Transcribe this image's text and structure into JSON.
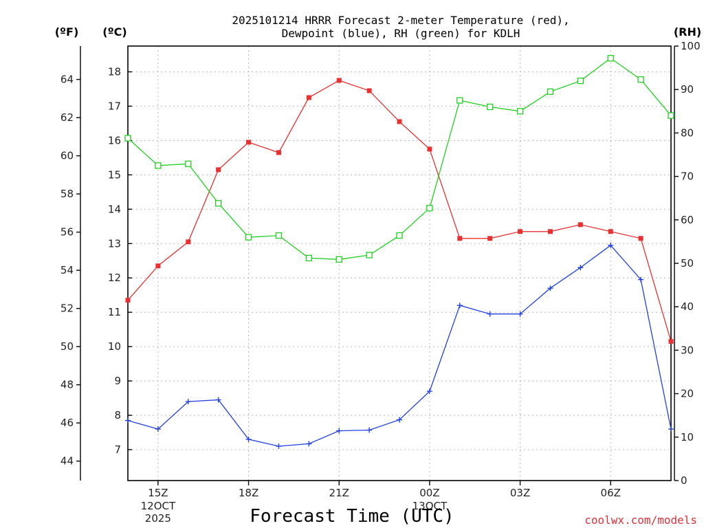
{
  "chart_data": {
    "type": "line",
    "title_line1": "2025101214 HRRR Forecast 2-meter Temperature (red),",
    "title_line2": "Dewpoint (blue), RH (green) for KDLH",
    "xlabel": "Forecast Time (UTC)",
    "credit": "coolwx.com/models",
    "units": {
      "fahrenheit": "(ºF)",
      "celsius": "(ºC)",
      "rh": "(RH)"
    },
    "x_hours": [
      14,
      15,
      16,
      17,
      18,
      19,
      20,
      21,
      22,
      23,
      24,
      25,
      26,
      27,
      28,
      29,
      30,
      31,
      32
    ],
    "xlim": [
      14,
      32
    ],
    "x_ticks": [
      {
        "hour": 15,
        "label": "15Z",
        "sub1": "12OCT",
        "sub2": "2025"
      },
      {
        "hour": 18,
        "label": "18Z",
        "sub1": "",
        "sub2": ""
      },
      {
        "hour": 21,
        "label": "21Z",
        "sub1": "",
        "sub2": ""
      },
      {
        "hour": 24,
        "label": "00Z",
        "sub1": "13OCT",
        "sub2": ""
      },
      {
        "hour": 27,
        "label": "03Z",
        "sub1": "",
        "sub2": ""
      },
      {
        "hour": 30,
        "label": "06Z",
        "sub1": "",
        "sub2": ""
      }
    ],
    "celsius_axis": {
      "range": [
        6.1,
        18.75
      ],
      "ticks": [
        "7",
        "8",
        "9",
        "10",
        "11",
        "12",
        "13",
        "14",
        "15",
        "16",
        "17",
        "18"
      ]
    },
    "fahrenheit_axis": {
      "range": [
        42.98,
        65.75
      ],
      "ticks": [
        "44",
        "46",
        "48",
        "50",
        "52",
        "54",
        "56",
        "58",
        "60",
        "62",
        "64"
      ]
    },
    "rh_axis": {
      "range": [
        0,
        100
      ],
      "ticks": [
        "0",
        "10",
        "20",
        "30",
        "40",
        "50",
        "60",
        "70",
        "80",
        "90",
        "100"
      ]
    },
    "series": [
      {
        "name": "Temperature",
        "axis": "celsius",
        "color": "#e83030",
        "marker": "filled-square",
        "values": [
          11.35,
          12.35,
          13.05,
          15.15,
          15.95,
          15.65,
          17.25,
          17.75,
          17.45,
          16.55,
          15.75,
          13.15,
          13.15,
          13.35,
          13.35,
          13.55,
          13.35,
          13.15,
          10.15
        ]
      },
      {
        "name": "Dewpoint",
        "axis": "celsius",
        "color": "#2040e0",
        "marker": "plus",
        "values": [
          7.85,
          7.6,
          8.4,
          8.45,
          7.3,
          7.1,
          7.17,
          7.55,
          7.57,
          7.87,
          8.7,
          11.2,
          10.95,
          10.95,
          11.7,
          12.3,
          12.95,
          11.95,
          7.6
        ]
      },
      {
        "name": "Relative Humidity",
        "axis": "rh",
        "color": "#20d020",
        "marker": "open-square",
        "values": [
          78.8,
          72.5,
          72.9,
          63.8,
          56.0,
          56.4,
          51.2,
          50.9,
          51.9,
          56.4,
          62.7,
          87.5,
          86.0,
          85.0,
          89.5,
          92.0,
          97.2,
          92.3,
          84.0
        ]
      }
    ]
  }
}
